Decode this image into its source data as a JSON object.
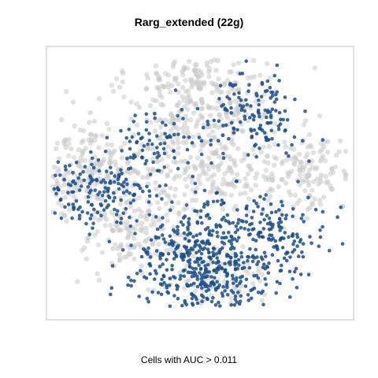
{
  "title": "Rarg_extended (22g)",
  "caption": "Cells with AUC > 0.011",
  "colors": {
    "background_cells": "#c8c8c8",
    "high_auc_cells": "#1a4f8c",
    "panel_border": "#c0c0c0"
  },
  "chart_data": {
    "type": "scatter",
    "title": "Rarg_extended (22g)",
    "xlabel": "",
    "ylabel": "",
    "axes_visible": false,
    "grid": false,
    "legend": "none",
    "series": [
      {
        "name": "",
        "color": "#c8c8c8",
        "role": "cells below AUC threshold",
        "points_by_region": [
          {
            "region": "upper-center",
            "x": 0.0,
            "y": 8.6,
            "count": "dense"
          },
          {
            "region": "left",
            "x": -8.8,
            "y": 1.2,
            "count": "dense"
          },
          {
            "region": "center",
            "x": 0.5,
            "y": 2.0,
            "count": "dense"
          },
          {
            "region": "right",
            "x": 8.8,
            "y": 1.0,
            "count": "moderate"
          },
          {
            "region": "lower-left",
            "x": -5.0,
            "y": -4.8,
            "count": "moderate"
          },
          {
            "region": "bottom",
            "x": 1.5,
            "y": -8.8,
            "count": "sparse"
          }
        ]
      },
      {
        "name": "",
        "color": "#1a4f8c",
        "role": "cells with AUC > 0.011",
        "points_by_region": [
          {
            "region": "lower-center",
            "x": 0.0,
            "y": -5.5,
            "count": "dense"
          },
          {
            "region": "lower-right",
            "x": 6.0,
            "y": -4.8,
            "count": "moderate"
          },
          {
            "region": "bottom",
            "x": 0.5,
            "y": -9.0,
            "count": "dense"
          },
          {
            "region": "left-edge",
            "x": -8.5,
            "y": -1.0,
            "count": "moderate"
          },
          {
            "region": "upper-right",
            "x": 4.0,
            "y": 6.0,
            "count": "moderate"
          },
          {
            "region": "center-left",
            "x": -4.0,
            "y": 3.5,
            "count": "sparse"
          }
        ]
      }
    ],
    "xlim": [
      -12,
      12
    ],
    "ylim": [
      -12,
      12
    ]
  }
}
